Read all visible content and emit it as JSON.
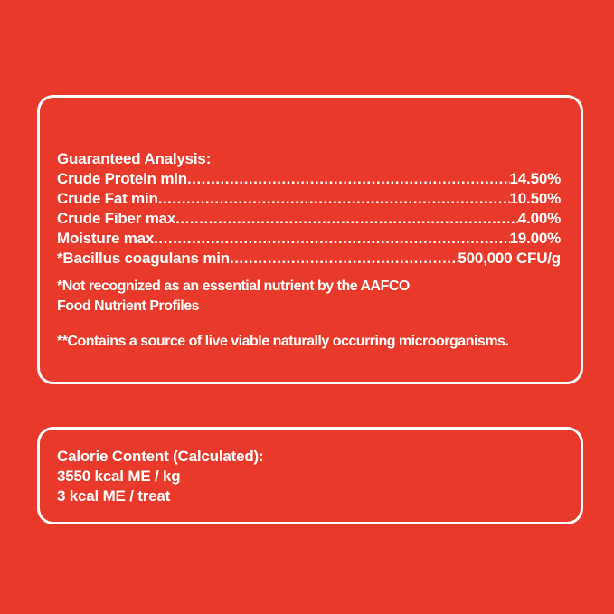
{
  "colors": {
    "background": "#E8392A",
    "text": "#FFFFFF",
    "border": "#FFFFFF"
  },
  "guaranteed_analysis": {
    "title": "Guaranteed Analysis:",
    "rows": [
      {
        "label": "Crude Protein min",
        "value": "14.50%"
      },
      {
        "label": "Crude Fat min",
        "value": "10.50%"
      },
      {
        "label": "Crude Fiber max",
        "value": "4.00%"
      },
      {
        "label": "Moisture max",
        "value": "19.00%"
      },
      {
        "label": "*Bacillus coagulans min",
        "value": "500,000 CFU/g"
      }
    ],
    "notes": [
      {
        "lines": [
          "*Not recognized as an essential nutrient by the AAFCO",
          "Food Nutrient Profiles"
        ]
      },
      {
        "lines": [
          "**Contains a source of live viable naturally occurring microorganisms."
        ]
      }
    ]
  },
  "calorie_content": {
    "title": "Calorie Content (Calculated):",
    "lines": [
      "3550 kcal ME / kg",
      "3 kcal ME / treat"
    ]
  }
}
